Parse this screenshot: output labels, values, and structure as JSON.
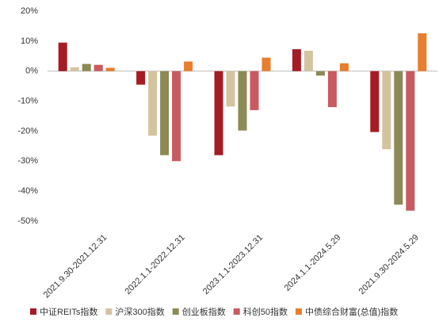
{
  "chart_data": {
    "type": "bar",
    "categories": [
      "2021.9.30-2021.12.31",
      "2022.1.1-2022.12.31",
      "2023.1.1-2023.12.31",
      "2024.1.1-2024.5.29",
      "2021.9.30-2024.5.29"
    ],
    "series": [
      {
        "name": "中证REITs指数",
        "color": "#a51c24",
        "values": [
          9.5,
          -4.5,
          -28,
          7.3,
          -20.3
        ]
      },
      {
        "name": "沪深300指数",
        "color": "#d3c4a0",
        "values": [
          1.3,
          -21.5,
          -11.8,
          6.8,
          -26
        ]
      },
      {
        "name": "创业板指数",
        "color": "#8c8a55",
        "values": [
          2.4,
          -28,
          -19.8,
          -1.5,
          -44.5
        ]
      },
      {
        "name": "科创50指数",
        "color": "#c85a62",
        "values": [
          2.1,
          -30,
          -13,
          -12,
          -46.5
        ]
      },
      {
        "name": "中债综合财富(总值)指数",
        "color": "#e87e2e",
        "values": [
          1.1,
          3.2,
          4.5,
          2.6,
          12.6
        ]
      }
    ],
    "ylim": [
      -50,
      20
    ],
    "yticks": [
      {
        "value": 20,
        "label": "20%"
      },
      {
        "value": 10,
        "label": "10%"
      },
      {
        "value": 0,
        "label": "0%"
      },
      {
        "value": -10,
        "label": "-10%"
      },
      {
        "value": -20,
        "label": "-20%"
      },
      {
        "value": -30,
        "label": "-30%"
      },
      {
        "value": -40,
        "label": "-40%"
      },
      {
        "value": -50,
        "label": "-50%"
      }
    ],
    "grid": false
  }
}
